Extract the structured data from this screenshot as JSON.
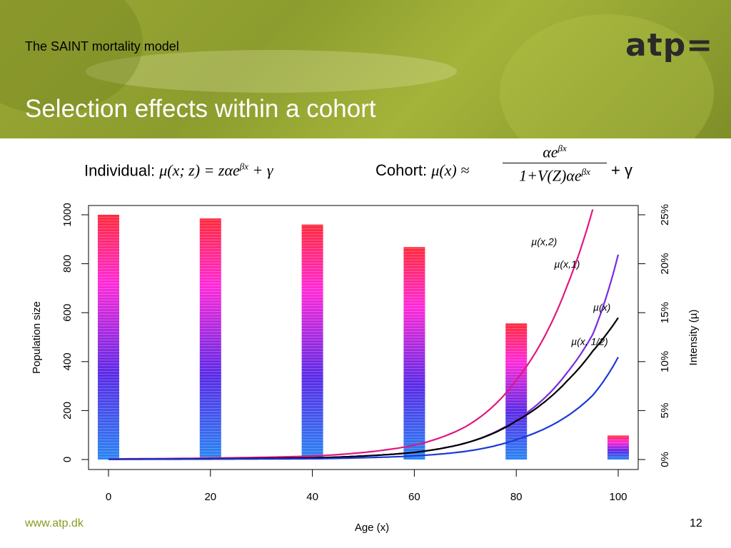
{
  "slide": {
    "subtitle": "The SAINT mortality model",
    "title": "Selection effects within a cohort",
    "logo": "atp=",
    "footer_url": "www.atp.dk",
    "page_number": "12"
  },
  "formulas": {
    "individual_label": "Individual:",
    "individual_expr": "μ(x; z) = zαe",
    "individual_exp": "βx",
    "individual_tail": " + γ",
    "cohort_label": "Cohort:",
    "cohort_lhs": "μ(x) ≈",
    "cohort_num": "αe",
    "cohort_num_exp": "βx",
    "cohort_den": "1+V(Z)αe",
    "cohort_den_exp": "βx",
    "cohort_tail": "+ γ"
  },
  "chart_data": {
    "type": "bar",
    "xlabel": "Age (x)",
    "ylabel_left": "Population size",
    "ylabel_right": "Intensity (µ)",
    "xlim": [
      0,
      100
    ],
    "ylim_left": [
      0,
      1000
    ],
    "ylim_right": [
      0,
      0.25
    ],
    "x_ticks": [
      "0",
      "20",
      "40",
      "60",
      "80",
      "100"
    ],
    "y_ticks_left": [
      "0",
      "200",
      "400",
      "600",
      "800",
      "1000"
    ],
    "y_ticks_right": [
      "0%",
      "5%",
      "10%",
      "15%",
      "20%",
      "25%"
    ],
    "bars": {
      "x": [
        0,
        20,
        40,
        60,
        80,
        100
      ],
      "values": [
        1000,
        985,
        960,
        868,
        556,
        98
      ],
      "gradient": [
        "#2a7af0",
        "#6a2ae8",
        "#ff2ad8",
        "#ff2a40"
      ]
    },
    "series": [
      {
        "name": "µ(x,2)",
        "color": "#e0197e",
        "x": [
          0,
          40,
          50,
          60,
          70,
          75,
          80,
          85,
          90,
          95
        ],
        "y": [
          0.0006,
          0.0035,
          0.0072,
          0.0146,
          0.0334,
          0.0522,
          0.0812,
          0.1204,
          0.1777,
          0.2555
        ]
      },
      {
        "name": "µ(x,1)",
        "color": "#7a2ae0",
        "x": [
          0,
          40,
          50,
          60,
          70,
          80,
          85,
          90,
          95,
          100
        ],
        "y": [
          0.0003,
          0.0017,
          0.0036,
          0.0073,
          0.0167,
          0.0406,
          0.0602,
          0.0889,
          0.1278,
          0.2093
        ]
      },
      {
        "name": "µ(x)",
        "color": "#000000",
        "x": [
          0,
          40,
          50,
          60,
          70,
          80,
          85,
          90,
          95,
          100
        ],
        "y": [
          0.0003,
          0.0017,
          0.0036,
          0.0073,
          0.0167,
          0.0394,
          0.0566,
          0.0804,
          0.1107,
          0.1448
        ]
      },
      {
        "name": "µ(x,1/2)",
        "color": "#1a3ad8",
        "x": [
          0,
          40,
          50,
          60,
          70,
          80,
          85,
          90,
          95,
          100
        ],
        "y": [
          0.0002,
          0.0008,
          0.0018,
          0.0037,
          0.0083,
          0.0203,
          0.0301,
          0.0444,
          0.0656,
          0.1046
        ]
      }
    ],
    "curve_labels": [
      {
        "text": "µ(x,2)",
        "x": 88,
        "y": 0.219
      },
      {
        "text": "µ(x,1)",
        "x": 92.5,
        "y": 0.196
      },
      {
        "text": "µ(x)",
        "x": 98.5,
        "y": 0.152
      },
      {
        "text": "µ(x, 1/2)",
        "x": 98,
        "y": 0.117
      }
    ]
  }
}
